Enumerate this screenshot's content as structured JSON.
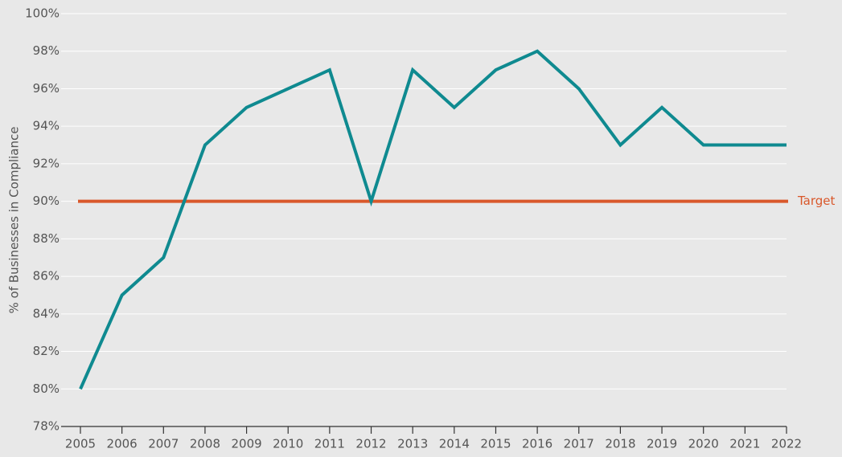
{
  "chart_data": {
    "type": "line",
    "y_axis_label": "% of Businesses in Compliance",
    "x": [
      2005,
      2006,
      2007,
      2008,
      2009,
      2010,
      2011,
      2012,
      2013,
      2014,
      2015,
      2016,
      2017,
      2018,
      2019,
      2020,
      2021,
      2022
    ],
    "series": [
      {
        "color": "#0f8a90",
        "values": [
          80,
          85,
          87,
          93,
          95,
          96,
          97,
          90,
          97,
          95,
          97,
          98,
          96,
          93,
          95,
          93,
          93,
          93
        ]
      }
    ],
    "target": {
      "value": 90,
      "label": "Target",
      "color": "#d9582b"
    },
    "xlim": [
      2005,
      2022
    ],
    "xticks": [
      2005,
      2006,
      2007,
      2008,
      2009,
      2010,
      2011,
      2012,
      2013,
      2014,
      2015,
      2016,
      2017,
      2018,
      2019,
      2020,
      2021,
      2022
    ],
    "ylim": [
      78,
      100
    ],
    "yticks": [
      {
        "value": 78,
        "label": "78%"
      },
      {
        "value": 80,
        "label": "80%"
      },
      {
        "value": 82,
        "label": "82%"
      },
      {
        "value": 84,
        "label": "84%"
      },
      {
        "value": 86,
        "label": "86%"
      },
      {
        "value": 88,
        "label": "88%"
      },
      {
        "value": 90,
        "label": "90%"
      },
      {
        "value": 92,
        "label": "92%"
      },
      {
        "value": 94,
        "label": "94%"
      },
      {
        "value": 96,
        "label": "96%"
      },
      {
        "value": 98,
        "label": "98%"
      },
      {
        "value": 100,
        "label": "100%"
      }
    ],
    "grid": true
  }
}
